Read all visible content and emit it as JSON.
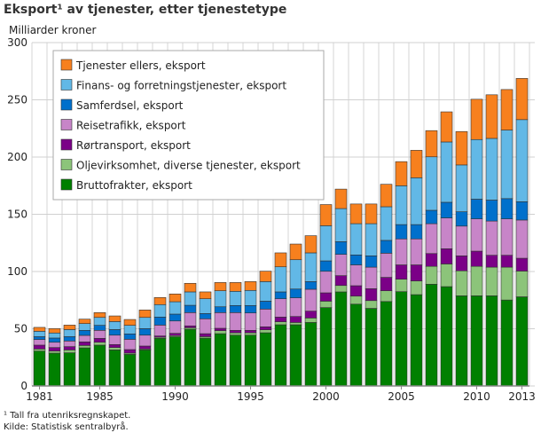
{
  "chart_data": {
    "type": "bar",
    "stacked": true,
    "title": "Eksport¹ av tjenester, etter tjenestetype",
    "ylabel": "Milliarder kroner",
    "ylim": [
      0,
      300
    ],
    "yticks": [
      0,
      50,
      100,
      150,
      200,
      250,
      300
    ],
    "xticks": [
      "1981",
      "1985",
      "1990",
      "1995",
      "2000",
      "2005",
      "2010",
      "2013"
    ],
    "grid": true,
    "legend_position": "top-left",
    "categories": [
      "1981",
      "1982",
      "1983",
      "1984",
      "1985",
      "1986",
      "1987",
      "1988",
      "1989",
      "1990",
      "1991",
      "1992",
      "1993",
      "1994",
      "1995",
      "1996",
      "1997",
      "1998",
      "1999",
      "2000",
      "2001",
      "2002",
      "2003",
      "2004",
      "2005",
      "2006",
      "2007",
      "2008",
      "2009",
      "2010",
      "2011",
      "2012",
      "2013"
    ],
    "series": [
      {
        "name": "Bruttofrakter, eksport",
        "color": "#008000",
        "values": [
          30.5,
          28.7,
          29,
          33.3,
          35.7,
          31.5,
          27.6,
          31.5,
          41.6,
          43,
          49.6,
          41.8,
          45.7,
          44.4,
          44.4,
          46.5,
          53.5,
          53.5,
          55.5,
          68.5,
          82.2,
          71.5,
          67.8,
          73.8,
          82.4,
          79.8,
          88.9,
          86.8,
          78.8,
          78.8,
          78.8,
          75.1,
          77.9
        ]
      },
      {
        "name": "Oljevirksomhet, diverse tjenester, eksport",
        "color": "#8cc47a",
        "values": [
          1.8,
          1.8,
          2.5,
          2.1,
          2.5,
          2.1,
          1.1,
          0.8,
          1,
          1,
          1.3,
          1.3,
          2.6,
          2.1,
          2.1,
          2.6,
          2.6,
          2,
          3.9,
          5.6,
          5.6,
          7,
          6.8,
          9.4,
          10.9,
          12,
          15.6,
          19.8,
          21.8,
          25.7,
          25,
          28.7,
          22.5
        ]
      },
      {
        "name": "Rørtransport, eksport",
        "color": "#7b0087",
        "values": [
          3.4,
          3.1,
          2.9,
          3.1,
          3.4,
          2.6,
          3.1,
          2.6,
          1.1,
          2,
          1.6,
          2.6,
          2.1,
          2.1,
          2.1,
          2.6,
          4.1,
          5.2,
          6,
          7.3,
          8.6,
          9.1,
          10.4,
          11.7,
          12.5,
          14,
          11.2,
          13.3,
          13.1,
          13.3,
          10.4,
          10.4,
          11.2
        ]
      },
      {
        "name": "Reisetrafikk, eksport",
        "color": "#c785c8",
        "values": [
          4.9,
          4.6,
          4.9,
          5.7,
          7,
          8.2,
          9,
          9.5,
          9.5,
          10.8,
          11.6,
          13,
          13.7,
          15.5,
          15.2,
          15.5,
          16,
          16.3,
          19.1,
          18.8,
          18.6,
          18.2,
          18.8,
          21.1,
          22.7,
          22.7,
          26.1,
          26.9,
          26,
          28.2,
          29.9,
          31.8,
          33.4
        ]
      },
      {
        "name": "Samferdsel, eksport",
        "color": "#0070cc",
        "values": [
          2.5,
          3.7,
          3.8,
          4.4,
          4.4,
          4.9,
          4.7,
          5.7,
          7,
          6,
          6.4,
          4.6,
          5.1,
          6.2,
          6.5,
          6.9,
          6,
          7.7,
          6.7,
          9.1,
          11.1,
          8.7,
          9.9,
          11.2,
          12.5,
          12.5,
          11.7,
          13.7,
          12.5,
          17.2,
          18.3,
          17.7,
          16
        ]
      },
      {
        "name": "Finans- og forretningstjenester, eksport",
        "color": "#62b8e6",
        "values": [
          4.7,
          4.4,
          6.2,
          5.9,
          6.9,
          7,
          7.5,
          9.8,
          10.9,
          10.8,
          11.7,
          12.9,
          14,
          12.4,
          13.2,
          17.1,
          21.9,
          25.6,
          25.1,
          30.7,
          28.9,
          27.3,
          28.1,
          29.4,
          33.9,
          40.9,
          46.7,
          52.7,
          40.9,
          52.1,
          53.9,
          59.9,
          71.7
        ]
      },
      {
        "name": "Tjenester ellers, eksport",
        "color": "#f7801e",
        "values": [
          3.4,
          3.8,
          3.9,
          3.9,
          4.2,
          4.9,
          5.1,
          6.5,
          6.2,
          6.8,
          7.5,
          6,
          7.2,
          7.7,
          7.7,
          9.1,
          12.2,
          13.7,
          15,
          18.5,
          17,
          17.2,
          17.2,
          19.6,
          21.1,
          24,
          22.9,
          26.3,
          29.2,
          35.2,
          38.1,
          35.4,
          36
        ]
      }
    ],
    "legend_order": [
      6,
      5,
      4,
      3,
      2,
      1,
      0
    ]
  },
  "footnotes": [
    "¹ Tall fra utenriksregnskapet.",
    "Kilde: Statistisk sentralbyrå."
  ]
}
